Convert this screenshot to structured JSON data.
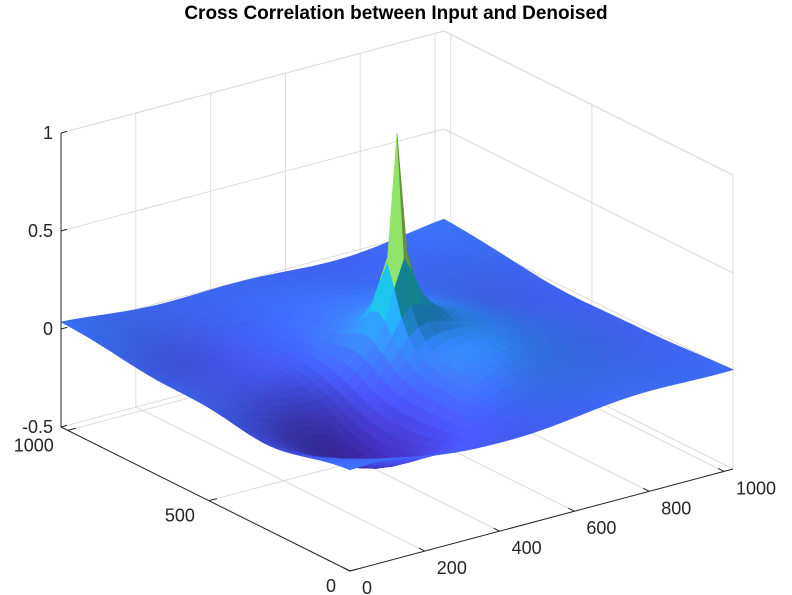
{
  "chart_data": {
    "type": "surface",
    "title": "Cross Correlation between Input and Denoised",
    "xlabel": "",
    "ylabel": "",
    "zlabel": "",
    "x_range": [
      0,
      1024
    ],
    "y_range": [
      0,
      1024
    ],
    "z_range": [
      -0.5,
      1
    ],
    "x_ticks": [
      0,
      200,
      400,
      600,
      800,
      1000
    ],
    "y_ticks": [
      0,
      500,
      1000
    ],
    "z_ticks": [
      -0.5,
      0,
      0.5,
      1
    ],
    "x_tick_labels": [
      "0",
      "200",
      "400",
      "600",
      "800",
      "1000"
    ],
    "y_tick_labels": [
      "0",
      "500",
      "1000"
    ],
    "z_tick_labels": [
      "-0.5",
      "0",
      "0.5",
      "1"
    ],
    "grid": true,
    "colormap": "parula",
    "peak": {
      "x": 512,
      "y": 512,
      "z": 0.88
    },
    "surface_features": [
      {
        "x": 230,
        "y": 180,
        "z": -0.17
      },
      {
        "x": 300,
        "y": 380,
        "z": -0.12
      },
      {
        "x": 600,
        "y": 300,
        "z": 0.08
      },
      {
        "x": 650,
        "y": 560,
        "z": 0.06
      },
      {
        "x": 150,
        "y": 700,
        "z": -0.04
      },
      {
        "x": 820,
        "y": 820,
        "z": 0.02
      },
      {
        "x": 120,
        "y": 300,
        "z": -0.09
      },
      {
        "x": 880,
        "y": 420,
        "z": 0.03
      }
    ]
  }
}
